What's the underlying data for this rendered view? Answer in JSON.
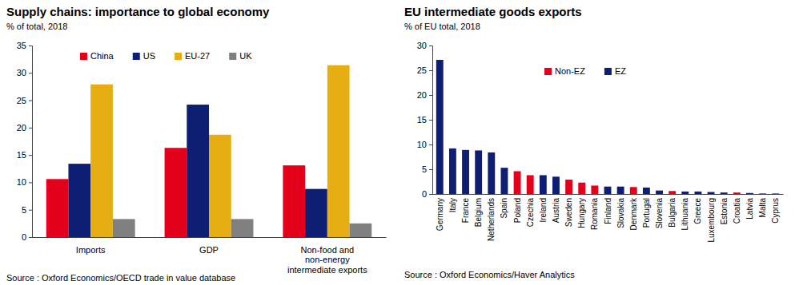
{
  "chart_data": [
    {
      "type": "bar",
      "title": "Supply chains: importance to global economy",
      "subtitle": "% of total, 2018",
      "source": "Source : Oxford Economics/OECD trade in value database",
      "categories": [
        "Imports",
        "GDP",
        "Non-food and non-energy intermediate exports"
      ],
      "series": [
        {
          "name": "China",
          "color": "#e2001a",
          "values": [
            10.6,
            16.3,
            13.1
          ]
        },
        {
          "name": "US",
          "color": "#0e1f73",
          "values": [
            13.4,
            24.2,
            8.8
          ]
        },
        {
          "name": "EU-27",
          "color": "#e6ae12",
          "values": [
            27.9,
            18.7,
            31.4
          ]
        },
        {
          "name": "UK",
          "color": "#808080",
          "values": [
            3.3,
            3.3,
            2.5
          ]
        }
      ],
      "ylim": [
        0,
        35
      ],
      "yticks": [
        0,
        5,
        10,
        15,
        20,
        25,
        30,
        35
      ],
      "grid": false,
      "legend": "top"
    },
    {
      "type": "bar",
      "title": "EU intermediate goods exports",
      "subtitle": "% of EU total, 2018",
      "source": "Source : Oxford Economics/Haver Analytics",
      "categories": [
        "Germany",
        "Italy",
        "France",
        "Belgium",
        "Netherlands",
        "Spain",
        "Poland",
        "Czechia",
        "Ireland",
        "Austria",
        "Sweden",
        "Hungary",
        "Romania",
        "Finland",
        "Slovakia",
        "Denmark",
        "Portugal",
        "Slovenia",
        "Bulgaria",
        "Lithuania",
        "Greece",
        "Luxembourg",
        "Estonia",
        "Croatia",
        "Latvia",
        "Malta",
        "Cyprus"
      ],
      "series": [
        {
          "name": "Non-EZ",
          "color": "#e2001a",
          "values": [
            null,
            null,
            null,
            null,
            null,
            null,
            4.6,
            3.8,
            null,
            null,
            2.9,
            2.3,
            1.7,
            null,
            null,
            1.4,
            null,
            null,
            0.6,
            null,
            null,
            null,
            null,
            0.3,
            null,
            null,
            null
          ]
        },
        {
          "name": "EZ",
          "color": "#0e1f73",
          "values": [
            27.1,
            9.2,
            8.9,
            8.8,
            8.4,
            5.3,
            null,
            null,
            3.8,
            3.5,
            null,
            null,
            null,
            1.5,
            1.5,
            null,
            1.3,
            0.7,
            null,
            0.5,
            0.5,
            0.4,
            0.3,
            null,
            0.2,
            0.1,
            0.1
          ]
        }
      ],
      "stacked": true,
      "ylim": [
        0,
        30
      ],
      "yticks": [
        0,
        5,
        10,
        15,
        20,
        25,
        30
      ],
      "grid": false,
      "legend": "top"
    }
  ]
}
